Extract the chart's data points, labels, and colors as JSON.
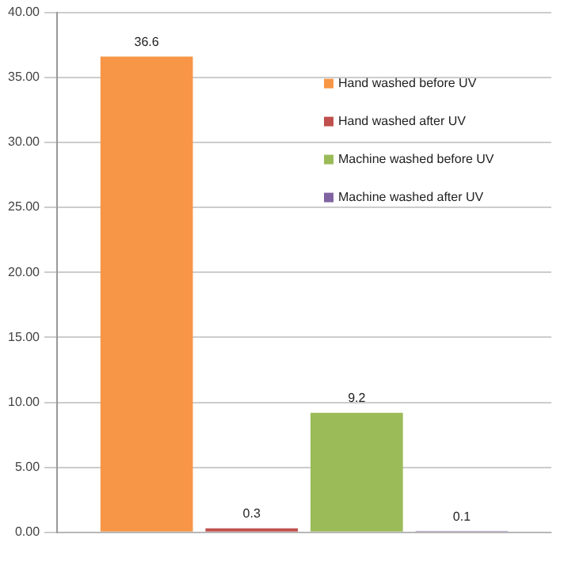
{
  "chart_data": {
    "type": "bar",
    "categories": [
      null
    ],
    "series": [
      {
        "name": "Hand washed before UV",
        "color": "#f79646",
        "values": [
          36.6
        ]
      },
      {
        "name": "Hand washed after UV",
        "color": "#c0504d",
        "values": [
          0.3
        ]
      },
      {
        "name": "Machine washed before UV",
        "color": "#9bbb59",
        "values": [
          9.2
        ]
      },
      {
        "name": "Machine washed after UV",
        "color": "#8064a2",
        "values": [
          0.1
        ]
      }
    ],
    "ylim": [
      0,
      40
    ],
    "yticks": [
      {
        "value": 0,
        "label": "0.00"
      },
      {
        "value": 5,
        "label": "5.00"
      },
      {
        "value": 10,
        "label": "10.00"
      },
      {
        "value": 15,
        "label": "15.00"
      },
      {
        "value": 20,
        "label": "20.00"
      },
      {
        "value": 25,
        "label": "25.00"
      },
      {
        "value": 30,
        "label": "30.00"
      },
      {
        "value": 35,
        "label": "35.00"
      },
      {
        "value": 40,
        "label": "40.00"
      }
    ],
    "grid": "y",
    "legend": "top right",
    "data_labels": true
  }
}
